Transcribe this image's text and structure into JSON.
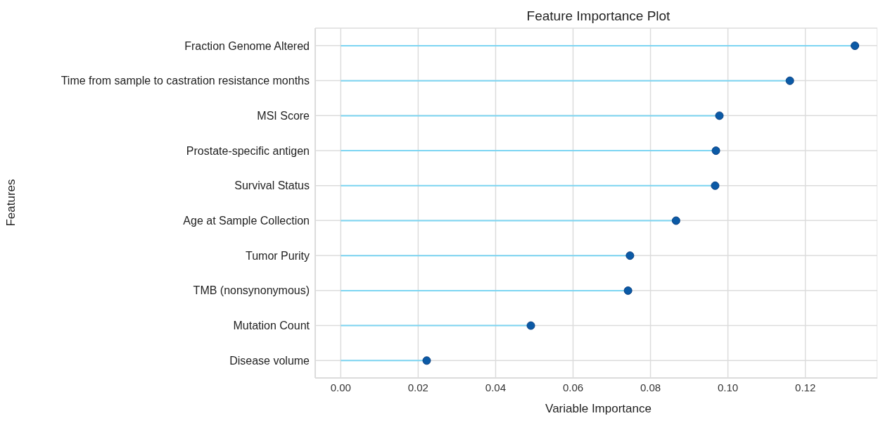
{
  "chart_data": {
    "type": "lollipop",
    "orientation": "horizontal",
    "title": "Feature Importance Plot",
    "xlabel": "Variable Importance",
    "ylabel": "Features",
    "categories": [
      "Fraction Genome Altered",
      "Time from sample to castration resistance months",
      "MSI Score",
      "Prostate-specific antigen",
      "Survival Status",
      "Age at Sample Collection",
      "Tumor Purity",
      "TMB (nonsynonymous)",
      "Mutation Count",
      "Disease volume"
    ],
    "series": [
      {
        "color": "#0b5aa6",
        "values": [
          0.1328,
          0.116,
          0.0978,
          0.0969,
          0.0967,
          0.0866,
          0.0747,
          0.0742,
          0.0491,
          0.0222
        ]
      }
    ],
    "xlim": [
      -0.0066,
      0.1386
    ],
    "xticks": [
      {
        "value": 0,
        "label": "0.00"
      },
      {
        "value": 0.02,
        "label": "0.02"
      },
      {
        "value": 0.04,
        "label": "0.04"
      },
      {
        "value": 0.06,
        "label": "0.06"
      },
      {
        "value": 0.08,
        "label": "0.08"
      },
      {
        "value": 0.1,
        "label": "0.10"
      },
      {
        "value": 0.12,
        "label": "0.12"
      }
    ],
    "grid": true,
    "marker": "circle"
  }
}
